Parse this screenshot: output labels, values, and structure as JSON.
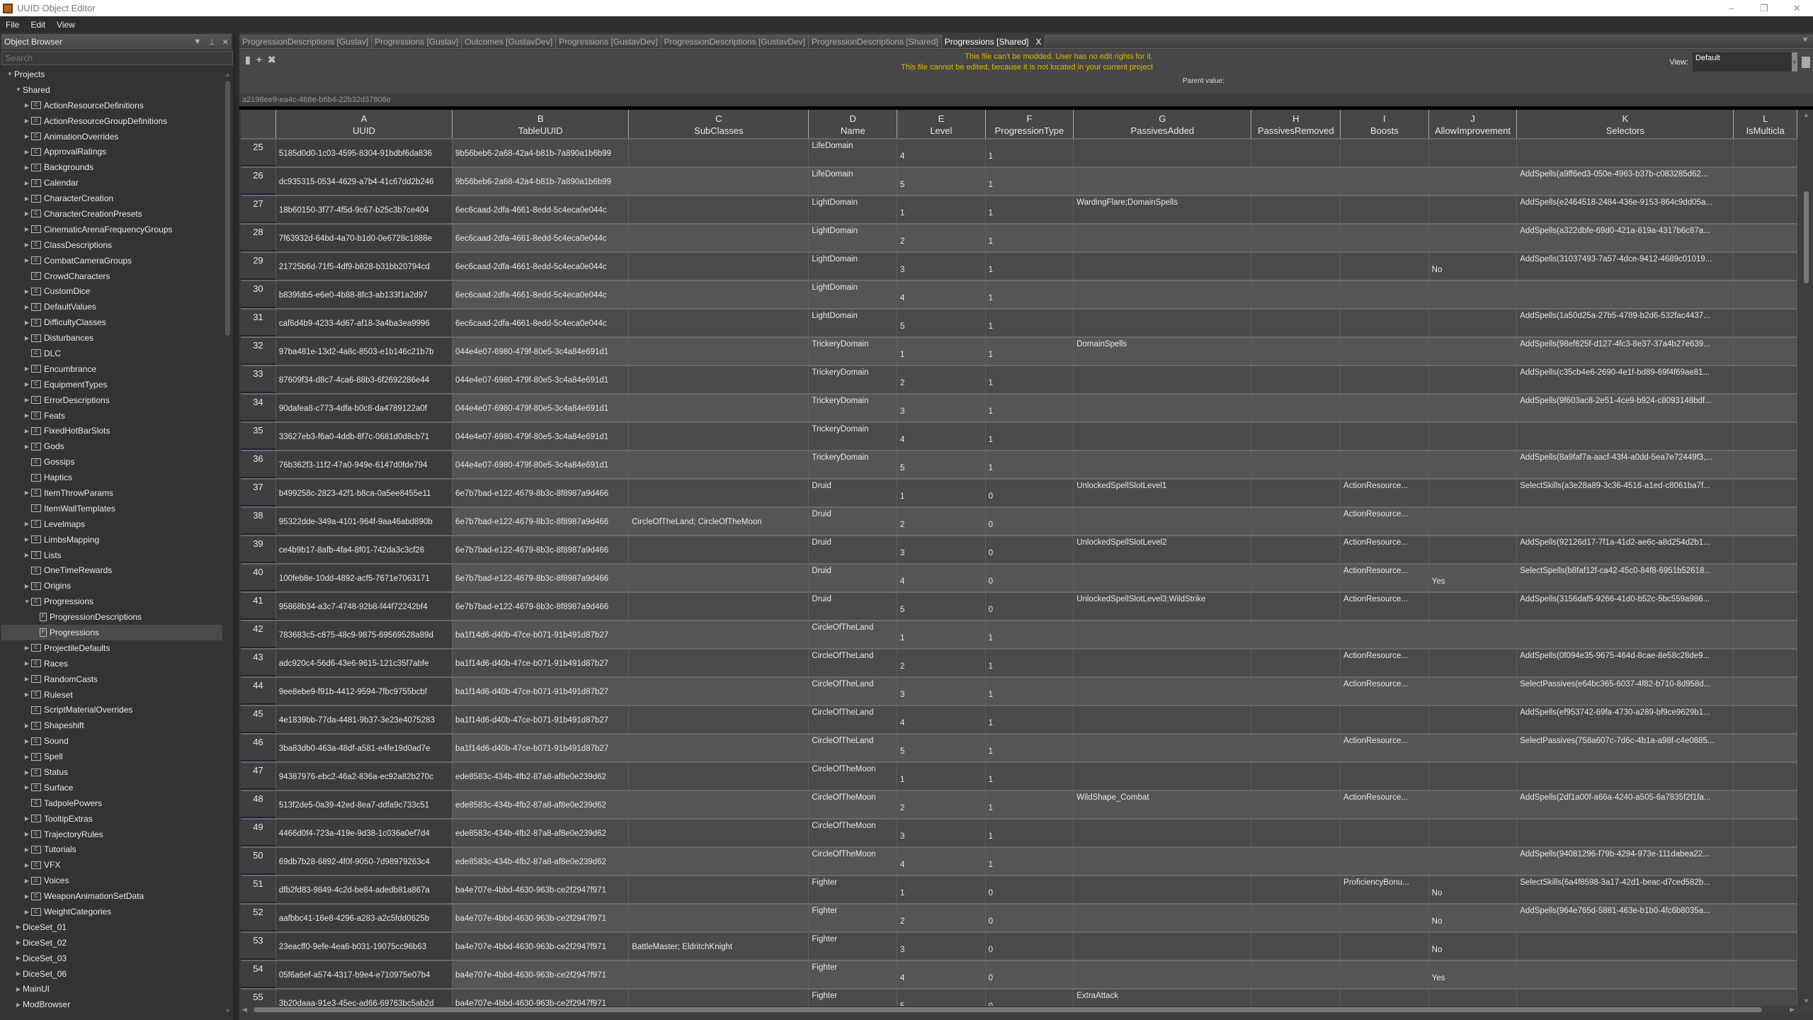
{
  "window": {
    "title": "UUID Object Editor",
    "controls": [
      "–",
      "❐",
      "✕"
    ]
  },
  "menu": [
    "File",
    "Edit",
    "View"
  ],
  "sidebar": {
    "title": "Object Browser",
    "search_placeholder": "Search",
    "tree": [
      {
        "label": "Projects",
        "level": 0,
        "arrow": "open"
      },
      {
        "label": "Shared",
        "level": 1,
        "arrow": "open"
      },
      {
        "label": "ActionResourceDefinitions",
        "level": 2,
        "arrow": "closed",
        "icon": "C"
      },
      {
        "label": "ActionResourceGroupDefinitions",
        "level": 2,
        "arrow": "closed",
        "icon": "C"
      },
      {
        "label": "AnimationOverrides",
        "level": 2,
        "arrow": "closed",
        "icon": "C"
      },
      {
        "label": "ApprovalRatings",
        "level": 2,
        "arrow": "closed",
        "icon": "C"
      },
      {
        "label": "Backgrounds",
        "level": 2,
        "arrow": "closed",
        "icon": "C"
      },
      {
        "label": "Calendar",
        "level": 2,
        "arrow": "closed",
        "icon": "C"
      },
      {
        "label": "CharacterCreation",
        "level": 2,
        "arrow": "closed",
        "icon": "C"
      },
      {
        "label": "CharacterCreationPresets",
        "level": 2,
        "arrow": "closed",
        "icon": "C"
      },
      {
        "label": "CinematicArenaFrequencyGroups",
        "level": 2,
        "arrow": "closed",
        "icon": "C"
      },
      {
        "label": "ClassDescriptions",
        "level": 2,
        "arrow": "closed",
        "icon": "C"
      },
      {
        "label": "CombatCameraGroups",
        "level": 2,
        "arrow": "closed",
        "icon": "C"
      },
      {
        "label": "CrowdCharacters",
        "level": 2,
        "arrow": "none",
        "icon": "C"
      },
      {
        "label": "CustomDice",
        "level": 2,
        "arrow": "closed",
        "icon": "C"
      },
      {
        "label": "DefaultValues",
        "level": 2,
        "arrow": "closed",
        "icon": "C"
      },
      {
        "label": "DifficultyClasses",
        "level": 2,
        "arrow": "closed",
        "icon": "C"
      },
      {
        "label": "Disturbances",
        "level": 2,
        "arrow": "closed",
        "icon": "C"
      },
      {
        "label": "DLC",
        "level": 2,
        "arrow": "none",
        "icon": "C"
      },
      {
        "label": "Encumbrance",
        "level": 2,
        "arrow": "closed",
        "icon": "C"
      },
      {
        "label": "EquipmentTypes",
        "level": 2,
        "arrow": "closed",
        "icon": "C"
      },
      {
        "label": "ErrorDescriptions",
        "level": 2,
        "arrow": "closed",
        "icon": "C"
      },
      {
        "label": "Feats",
        "level": 2,
        "arrow": "closed",
        "icon": "C"
      },
      {
        "label": "FixedHotBarSlots",
        "level": 2,
        "arrow": "closed",
        "icon": "C"
      },
      {
        "label": "Gods",
        "level": 2,
        "arrow": "closed",
        "icon": "C"
      },
      {
        "label": "Gossips",
        "level": 2,
        "arrow": "none",
        "icon": "C"
      },
      {
        "label": "Haptics",
        "level": 2,
        "arrow": "none",
        "icon": "C"
      },
      {
        "label": "ItemThrowParams",
        "level": 2,
        "arrow": "closed",
        "icon": "C"
      },
      {
        "label": "ItemWallTemplates",
        "level": 2,
        "arrow": "none",
        "icon": "C"
      },
      {
        "label": "Levelmaps",
        "level": 2,
        "arrow": "closed",
        "icon": "C"
      },
      {
        "label": "LimbsMapping",
        "level": 2,
        "arrow": "closed",
        "icon": "C"
      },
      {
        "label": "Lists",
        "level": 2,
        "arrow": "closed",
        "icon": "C"
      },
      {
        "label": "OneTimeRewards",
        "level": 2,
        "arrow": "none",
        "icon": "C"
      },
      {
        "label": "Origins",
        "level": 2,
        "arrow": "closed",
        "icon": "C"
      },
      {
        "label": "Progressions",
        "level": 2,
        "arrow": "open",
        "icon": "C"
      },
      {
        "label": "ProgressionDescriptions",
        "level": 3,
        "arrow": "none",
        "icon": "F"
      },
      {
        "label": "Progressions",
        "level": 3,
        "arrow": "none",
        "icon": "F",
        "selected": true
      },
      {
        "label": "ProjectileDefaults",
        "level": 2,
        "arrow": "closed",
        "icon": "C"
      },
      {
        "label": "Races",
        "level": 2,
        "arrow": "closed",
        "icon": "C"
      },
      {
        "label": "RandomCasts",
        "level": 2,
        "arrow": "closed",
        "icon": "C"
      },
      {
        "label": "Ruleset",
        "level": 2,
        "arrow": "closed",
        "icon": "C"
      },
      {
        "label": "ScriptMaterialOverrides",
        "level": 2,
        "arrow": "none",
        "icon": "C"
      },
      {
        "label": "Shapeshift",
        "level": 2,
        "arrow": "closed",
        "icon": "C"
      },
      {
        "label": "Sound",
        "level": 2,
        "arrow": "closed",
        "icon": "C"
      },
      {
        "label": "Spell",
        "level": 2,
        "arrow": "closed",
        "icon": "C"
      },
      {
        "label": "Status",
        "level": 2,
        "arrow": "closed",
        "icon": "C"
      },
      {
        "label": "Surface",
        "level": 2,
        "arrow": "closed",
        "icon": "C"
      },
      {
        "label": "TadpolePowers",
        "level": 2,
        "arrow": "none",
        "icon": "C"
      },
      {
        "label": "TooltipExtras",
        "level": 2,
        "arrow": "closed",
        "icon": "C"
      },
      {
        "label": "TrajectoryRules",
        "level": 2,
        "arrow": "closed",
        "icon": "C"
      },
      {
        "label": "Tutorials",
        "level": 2,
        "arrow": "closed",
        "icon": "C"
      },
      {
        "label": "VFX",
        "level": 2,
        "arrow": "closed",
        "icon": "C"
      },
      {
        "label": "Voices",
        "level": 2,
        "arrow": "closed",
        "icon": "C"
      },
      {
        "label": "WeaponAnimationSetData",
        "level": 2,
        "arrow": "closed",
        "icon": "C"
      },
      {
        "label": "WeightCategories",
        "level": 2,
        "arrow": "closed",
        "icon": "C"
      },
      {
        "label": "DiceSet_01",
        "level": 1,
        "arrow": "closed"
      },
      {
        "label": "DiceSet_02",
        "level": 1,
        "arrow": "closed"
      },
      {
        "label": "DiceSet_03",
        "level": 1,
        "arrow": "closed"
      },
      {
        "label": "DiceSet_06",
        "level": 1,
        "arrow": "closed"
      },
      {
        "label": "MainUI",
        "level": 1,
        "arrow": "closed"
      },
      {
        "label": "ModBrowser",
        "level": 1,
        "arrow": "closed"
      }
    ]
  },
  "tabs": [
    {
      "label": "ProgressionDescriptions [Gustav]"
    },
    {
      "label": "Progressions [Gustav]"
    },
    {
      "label": "Outcomes [GustavDev]"
    },
    {
      "label": "Progressions [GustavDev]"
    },
    {
      "label": "ProgressionDescriptions [GustavDev]"
    },
    {
      "label": "ProgressionDescriptions [Shared]"
    },
    {
      "label": "Progressions [Shared]",
      "active": true,
      "close": "X"
    }
  ],
  "toolbar": {
    "warning1": "This file can't be modded. User has no edit rights for it.",
    "warning2": "This file cannot be edited, because it is not located in your current project",
    "parent_label": "Parent value:",
    "view_label": "View:",
    "view_value": "Default",
    "warning_color": "#e0b800"
  },
  "uuid_bar": "a2198ee9-ea4c-468e-b6b4-22b32d37806e",
  "columns": [
    {
      "letter": "A",
      "name": "UUID"
    },
    {
      "letter": "B",
      "name": "TableUUID"
    },
    {
      "letter": "C",
      "name": "SubClasses"
    },
    {
      "letter": "D",
      "name": "Name"
    },
    {
      "letter": "E",
      "name": "Level"
    },
    {
      "letter": "F",
      "name": "ProgressionType"
    },
    {
      "letter": "G",
      "name": "PassivesAdded"
    },
    {
      "letter": "H",
      "name": "PassivesRemoved"
    },
    {
      "letter": "I",
      "name": "Boosts"
    },
    {
      "letter": "J",
      "name": "AllowImprovement"
    },
    {
      "letter": "K",
      "name": "Selectors"
    },
    {
      "letter": "L",
      "name": "IsMulticla"
    }
  ],
  "rows": [
    {
      "n": "25",
      "a": "5185d0d0-1c03-4595-8304-91bdbf6da836",
      "b": "9b56beb6-2a68-42a4-b81b-7a890a1b6b99",
      "c": "",
      "d": "LifeDomain",
      "e": "4",
      "f": "1",
      "g": "",
      "h": "",
      "i": "",
      "j": "",
      "k": "",
      "l": ""
    },
    {
      "n": "26",
      "a": "dc935315-0534-4629-a7b4-41c67dd2b246",
      "b": "9b56beb6-2a68-42a4-b81b-7a890a1b6b99",
      "c": "",
      "d": "LifeDomain",
      "e": "5",
      "f": "1",
      "g": "",
      "h": "",
      "i": "",
      "j": "",
      "k": "AddSpells(a9ff6ed3-050e-4963-b37b-c083285d62...",
      "l": ""
    },
    {
      "n": "27",
      "a": "18b60150-3f77-4f5d-9c67-b25c3b7ce404",
      "b": "6ec6caad-2dfa-4661-8edd-5c4eca0e044c",
      "c": "",
      "d": "LightDomain",
      "e": "1",
      "f": "1",
      "g": "WardingFlare;DomainSpells",
      "h": "",
      "i": "",
      "j": "",
      "k": "AddSpells(e2464518-2484-436e-9153-864c9dd05a...",
      "l": ""
    },
    {
      "n": "28",
      "a": "7f63932d-64bd-4a70-b1d0-0e6728c1888e",
      "b": "6ec6caad-2dfa-4661-8edd-5c4eca0e044c",
      "c": "",
      "d": "LightDomain",
      "e": "2",
      "f": "1",
      "g": "",
      "h": "",
      "i": "",
      "j": "",
      "k": "AddSpells(a322dbfe-69d0-421a-819a-4317b6c87a...",
      "l": ""
    },
    {
      "n": "29",
      "a": "21725b6d-71f5-4df9-b828-b31bb20794cd",
      "b": "6ec6caad-2dfa-4661-8edd-5c4eca0e044c",
      "c": "",
      "d": "LightDomain",
      "e": "3",
      "f": "1",
      "g": "",
      "h": "",
      "i": "",
      "j": "No",
      "k": "AddSpells(31037493-7a57-4dce-9412-4689c01019...",
      "l": ""
    },
    {
      "n": "30",
      "a": "b839fdb5-e6e0-4b88-8fc3-ab133f1a2d97",
      "b": "6ec6caad-2dfa-4661-8edd-5c4eca0e044c",
      "c": "",
      "d": "LightDomain",
      "e": "4",
      "f": "1",
      "g": "",
      "h": "",
      "i": "",
      "j": "",
      "k": "",
      "l": ""
    },
    {
      "n": "31",
      "a": "caf6d4b9-4233-4d67-af18-3a4ba3ea9996",
      "b": "6ec6caad-2dfa-4661-8edd-5c4eca0e044c",
      "c": "",
      "d": "LightDomain",
      "e": "5",
      "f": "1",
      "g": "",
      "h": "",
      "i": "",
      "j": "",
      "k": "AddSpells(1a50d25a-27b5-4789-b2d6-532fac4437...",
      "l": ""
    },
    {
      "n": "32",
      "a": "97ba481e-13d2-4a8c-8503-e1b146c21b7b",
      "b": "044e4e07-6980-479f-80e5-3c4a84e691d1",
      "c": "",
      "d": "TrickeryDomain",
      "e": "1",
      "f": "1",
      "g": "DomainSpells",
      "h": "",
      "i": "",
      "j": "",
      "k": "AddSpells(98ef625f-d127-4fc3-8e37-37a4b27e639...",
      "l": ""
    },
    {
      "n": "33",
      "a": "87609f34-d8c7-4ca6-88b3-6f2692286e44",
      "b": "044e4e07-6980-479f-80e5-3c4a84e691d1",
      "c": "",
      "d": "TrickeryDomain",
      "e": "2",
      "f": "1",
      "g": "",
      "h": "",
      "i": "",
      "j": "",
      "k": "AddSpells(c35cb4e6-2690-4e1f-bd89-69f4f69ae81...",
      "l": ""
    },
    {
      "n": "34",
      "a": "90dafea8-c773-4dfa-b0c8-da4789122a0f",
      "b": "044e4e07-6980-479f-80e5-3c4a84e691d1",
      "c": "",
      "d": "TrickeryDomain",
      "e": "3",
      "f": "1",
      "g": "",
      "h": "",
      "i": "",
      "j": "",
      "k": "AddSpells(9f603ac8-2e51-4ce9-b924-c8093148bdf...",
      "l": ""
    },
    {
      "n": "35",
      "a": "33627eb3-f6a0-4ddb-8f7c-0681d0d8cb71",
      "b": "044e4e07-6980-479f-80e5-3c4a84e691d1",
      "c": "",
      "d": "TrickeryDomain",
      "e": "4",
      "f": "1",
      "g": "",
      "h": "",
      "i": "",
      "j": "",
      "k": "",
      "l": ""
    },
    {
      "n": "36",
      "a": "76b362f3-11f2-47a0-949e-6147d0fde794",
      "b": "044e4e07-6980-479f-80e5-3c4a84e691d1",
      "c": "",
      "d": "TrickeryDomain",
      "e": "5",
      "f": "1",
      "g": "",
      "h": "",
      "i": "",
      "j": "",
      "k": "AddSpells(8a9faf7a-aacf-43f4-a0dd-5ea7e72449f3,...",
      "l": ""
    },
    {
      "n": "37",
      "a": "b499258c-2823-42f1-b8ca-0a5ee8455e11",
      "b": "6e7b7bad-e122-4679-8b3c-8f8987a9d466",
      "c": "",
      "d": "Druid",
      "e": "1",
      "f": "0",
      "g": "UnlockedSpellSlotLevel1",
      "h": "",
      "i": "ActionResource...",
      "j": "",
      "k": "SelectSkills(a3e28a89-3c36-4516-a1ed-c8061ba7f...",
      "l": ""
    },
    {
      "n": "38",
      "a": "95322dde-349a-4101-964f-9aa46abd890b",
      "b": "6e7b7bad-e122-4679-8b3c-8f8987a9d466",
      "c": "CircleOfTheLand; CircleOfTheMoon",
      "d": "Druid",
      "e": "2",
      "f": "0",
      "g": "",
      "h": "",
      "i": "ActionResource...",
      "j": "",
      "k": "",
      "l": ""
    },
    {
      "n": "39",
      "a": "ce4b9b17-8afb-4fa4-8f01-742da3c3cf26",
      "b": "6e7b7bad-e122-4679-8b3c-8f8987a9d466",
      "c": "",
      "d": "Druid",
      "e": "3",
      "f": "0",
      "g": "UnlockedSpellSlotLevel2",
      "h": "",
      "i": "ActionResource...",
      "j": "",
      "k": "AddSpells(92126d17-7f1a-41d2-ae6c-a8d254d2b1...",
      "l": ""
    },
    {
      "n": "40",
      "a": "100feb8e-10dd-4892-acf5-7671e7063171",
      "b": "6e7b7bad-e122-4679-8b3c-8f8987a9d466",
      "c": "",
      "d": "Druid",
      "e": "4",
      "f": "0",
      "g": "",
      "h": "",
      "i": "ActionResource...",
      "j": "Yes",
      "k": "SelectSpells(b8faf12f-ca42-45c0-84f8-6951b52618...",
      "l": ""
    },
    {
      "n": "41",
      "a": "95868b34-a3c7-4748-92b8-f44f72242bf4",
      "b": "6e7b7bad-e122-4679-8b3c-8f8987a9d466",
      "c": "",
      "d": "Druid",
      "e": "5",
      "f": "0",
      "g": "UnlockedSpellSlotLevel3;WildStrike",
      "h": "",
      "i": "ActionResource...",
      "j": "",
      "k": "AddSpells(3156daf5-9266-41d0-b52c-5bc559a986...",
      "l": ""
    },
    {
      "n": "42",
      "a": "783683c5-c875-48c9-9875-69569528a89d",
      "b": "ba1f14d6-d40b-47ce-b071-91b491d87b27",
      "c": "",
      "d": "CircleOfTheLand",
      "e": "1",
      "f": "1",
      "g": "",
      "h": "",
      "i": "",
      "j": "",
      "k": "",
      "l": ""
    },
    {
      "n": "43",
      "a": "adc920c4-56d6-43e6-9615-121c35f7abfe",
      "b": "ba1f14d6-d40b-47ce-b071-91b491d87b27",
      "c": "",
      "d": "CircleOfTheLand",
      "e": "2",
      "f": "1",
      "g": "",
      "h": "",
      "i": "ActionResource...",
      "j": "",
      "k": "AddSpells(0f094e35-9675-464d-8cae-8e58c28de9...",
      "l": ""
    },
    {
      "n": "44",
      "a": "9ee8ebe9-f91b-4412-9594-7fbc9755bcbf",
      "b": "ba1f14d6-d40b-47ce-b071-91b491d87b27",
      "c": "",
      "d": "CircleOfTheLand",
      "e": "3",
      "f": "1",
      "g": "",
      "h": "",
      "i": "ActionResource...",
      "j": "",
      "k": "SelectPassives(e64bc365-6037-4f82-b710-8d958d...",
      "l": ""
    },
    {
      "n": "45",
      "a": "4e1839bb-77da-4481-9b37-3e23e4075283",
      "b": "ba1f14d6-d40b-47ce-b071-91b491d87b27",
      "c": "",
      "d": "CircleOfTheLand",
      "e": "4",
      "f": "1",
      "g": "",
      "h": "",
      "i": "",
      "j": "",
      "k": "AddSpells(ef953742-69fa-4730-a289-bf9ce9629b1...",
      "l": ""
    },
    {
      "n": "46",
      "a": "3ba83db0-463a-48df-a581-e4fe19d0ad7e",
      "b": "ba1f14d6-d40b-47ce-b071-91b491d87b27",
      "c": "",
      "d": "CircleOfTheLand",
      "e": "5",
      "f": "1",
      "g": "",
      "h": "",
      "i": "ActionResource...",
      "j": "",
      "k": "SelectPassives(758a607c-7d6c-4b1a-a98f-c4e0885...",
      "l": ""
    },
    {
      "n": "47",
      "a": "94387976-ebc2-46a2-836a-ec92a82b270c",
      "b": "ede8583c-434b-4fb2-87a8-af8e0e239d62",
      "c": "",
      "d": "CircleOfTheMoon",
      "e": "1",
      "f": "1",
      "g": "",
      "h": "",
      "i": "",
      "j": "",
      "k": "",
      "l": ""
    },
    {
      "n": "48",
      "a": "513f2de5-0a39-42ed-8ea7-ddfa9c733c51",
      "b": "ede8583c-434b-4fb2-87a8-af8e0e239d62",
      "c": "",
      "d": "CircleOfTheMoon",
      "e": "2",
      "f": "1",
      "g": "WildShape_Combat",
      "h": "",
      "i": "ActionResource...",
      "j": "",
      "k": "AddSpells(2df1a00f-a66a-4240-a505-6a7835f2f1fa...",
      "l": ""
    },
    {
      "n": "49",
      "a": "4466d0f4-723a-419e-9d38-1c036a0ef7d4",
      "b": "ede8583c-434b-4fb2-87a8-af8e0e239d62",
      "c": "",
      "d": "CircleOfTheMoon",
      "e": "3",
      "f": "1",
      "g": "",
      "h": "",
      "i": "",
      "j": "",
      "k": "",
      "l": ""
    },
    {
      "n": "50",
      "a": "69db7b28-6892-4f0f-9050-7d98979263c4",
      "b": "ede8583c-434b-4fb2-87a8-af8e0e239d62",
      "c": "",
      "d": "CircleOfTheMoon",
      "e": "4",
      "f": "1",
      "g": "",
      "h": "",
      "i": "",
      "j": "",
      "k": "AddSpells(94081296-f79b-4294-973e-111dabea22...",
      "l": ""
    },
    {
      "n": "51",
      "a": "dfb2fd83-9849-4c2d-be84-adedb81a867a",
      "b": "ba4e707e-4bbd-4630-963b-ce2f2947f971",
      "c": "",
      "d": "Fighter",
      "e": "1",
      "f": "0",
      "g": "",
      "h": "",
      "i": "ProficiencyBonu...",
      "j": "No",
      "k": "SelectSkills(6a4f8598-3a17-42d1-beac-d7ced582b...",
      "l": ""
    },
    {
      "n": "52",
      "a": "aafbbc41-16e8-4296-a283-a2c5fdd0625b",
      "b": "ba4e707e-4bbd-4630-963b-ce2f2947f971",
      "c": "",
      "d": "Fighter",
      "e": "2",
      "f": "0",
      "g": "",
      "h": "",
      "i": "",
      "j": "No",
      "k": "AddSpells(964e765d-5881-463e-b1b0-4fc6b8035a...",
      "l": ""
    },
    {
      "n": "53",
      "a": "23eacff0-9efe-4ea6-b031-19075cc96b63",
      "b": "ba4e707e-4bbd-4630-963b-ce2f2947f971",
      "c": "BattleMaster; EldritchKnight",
      "d": "Fighter",
      "e": "3",
      "f": "0",
      "g": "",
      "h": "",
      "i": "",
      "j": "No",
      "k": "",
      "l": ""
    },
    {
      "n": "54",
      "a": "05f6a6ef-a574-4317-b9e4-e710975e07b4",
      "b": "ba4e707e-4bbd-4630-963b-ce2f2947f971",
      "c": "",
      "d": "Fighter",
      "e": "4",
      "f": "0",
      "g": "",
      "h": "",
      "i": "",
      "j": "Yes",
      "k": "",
      "l": ""
    },
    {
      "n": "55",
      "a": "3b20daaa-91e3-45ec-ad66-69763bc5ab2d",
      "b": "ba4e707e-4bbd-4630-963b-ce2f2947f971",
      "c": "",
      "d": "Fighter",
      "e": "5",
      "f": "0",
      "g": "ExtraAttack",
      "h": "",
      "i": "",
      "j": "",
      "k": "",
      "l": ""
    }
  ]
}
